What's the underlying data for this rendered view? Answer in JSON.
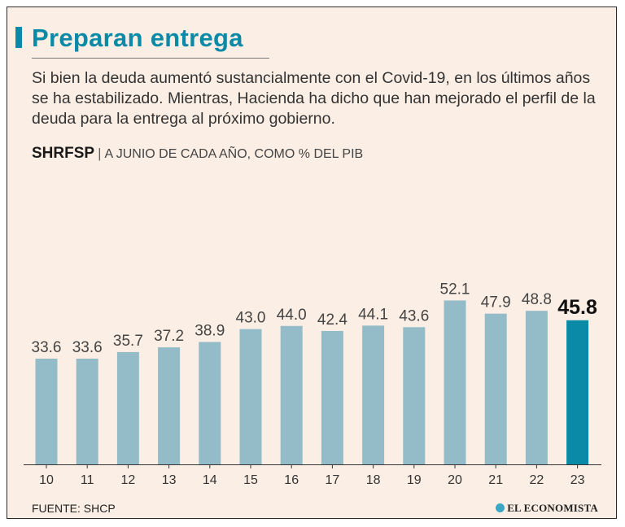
{
  "title": "Preparan entrega",
  "subtitle": "Si bien la deuda aumentó sustancialmente con el Covid-19, en los últimos años se ha estabilizado. Mientras, Hacienda ha dicho que han mejorado el perfil de la deuda para la entrega al próximo gobierno.",
  "measure": "SHRFSP",
  "separator": "|",
  "unit": "A JUNIO DE CADA AÑO, COMO % DEL PIB",
  "source": "FUENTE: SHCP",
  "brand": "EL ECONOMISTA",
  "colors": {
    "bar": "#93bcc8",
    "highlight": "#0a8aa6",
    "background": "#fbeee4"
  },
  "chart_data": {
    "type": "bar",
    "categories": [
      "10",
      "11",
      "12",
      "13",
      "14",
      "15",
      "16",
      "17",
      "18",
      "19",
      "20",
      "21",
      "22",
      "23"
    ],
    "values": [
      33.6,
      33.6,
      35.7,
      37.2,
      38.9,
      43.0,
      44.0,
      42.4,
      44.1,
      43.6,
      52.1,
      47.9,
      48.8,
      45.8
    ],
    "value_labels": [
      "33.6",
      "33.6",
      "35.7",
      "37.2",
      "38.9",
      "43.0",
      "44.0",
      "42.4",
      "44.1",
      "43.6",
      "52.1",
      "47.9",
      "48.8",
      "45.8"
    ],
    "highlight_index": 13,
    "grid": false
  }
}
